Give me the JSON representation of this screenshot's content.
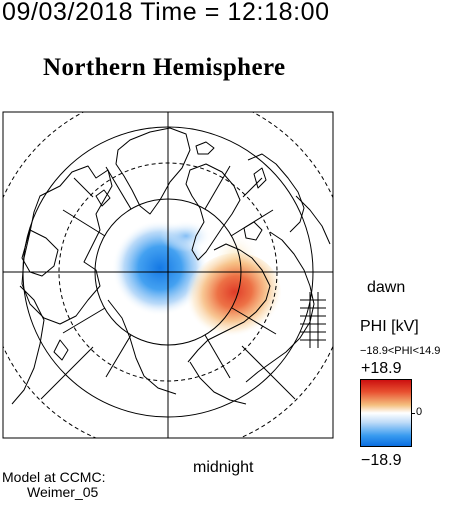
{
  "header": {
    "datetime": "09/03/2018 Time = 12:18:00"
  },
  "map": {
    "title": "Northern Hemisphere",
    "bottom_label": "midnight",
    "right_label": "dawn",
    "projection": "polar-stereographic",
    "pole": "north"
  },
  "colorbar": {
    "label": "PHI [kV]",
    "range_text": "−18.9<PHI<14.9",
    "max_label": "+18.9",
    "min_label": "−18.9",
    "zero_label": "0",
    "max_color": "#cc1010",
    "mid_color": "#ffffff",
    "min_color": "#0a6ee0"
  },
  "model": {
    "line1": "Model at CCMC:",
    "line2": "Weimer_05"
  },
  "fields": {
    "negative_cell_color": "#1c88e8",
    "positive_cell_color": "#e8442a"
  }
}
